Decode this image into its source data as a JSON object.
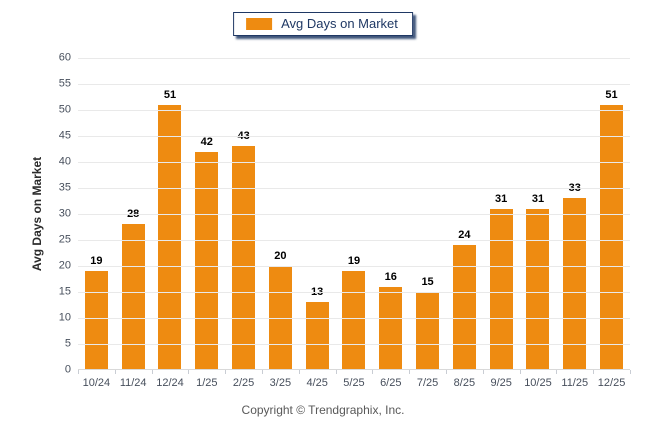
{
  "legend": {
    "label": "Avg Days on Market"
  },
  "footer": {
    "copyright": "Copyright © Trendgraphix, Inc."
  },
  "colors": {
    "bar": "#EE8B11",
    "legend_border": "#1F3864",
    "legend_text": "#1F3864",
    "gridline": "#E9E9E9",
    "tick_label": "#474F5C",
    "value_label": "#000000",
    "copyright_text": "#595959",
    "axis_title": "#2B2B2B"
  },
  "chart_data": {
    "type": "bar",
    "title": "",
    "xlabel": "",
    "ylabel": "Avg Days on Market",
    "categories": [
      "10/24",
      "11/24",
      "12/24",
      "1/25",
      "2/25",
      "3/25",
      "4/25",
      "5/25",
      "6/25",
      "7/25",
      "8/25",
      "9/25",
      "10/25",
      "11/25",
      "12/25"
    ],
    "values": [
      19,
      28,
      51,
      42,
      43,
      20,
      13,
      19,
      16,
      15,
      24,
      31,
      31,
      33,
      51
    ],
    "ylim": [
      0,
      60
    ],
    "ytick_step": 5,
    "y_ticks": [
      0,
      5,
      10,
      15,
      20,
      25,
      30,
      35,
      40,
      45,
      50,
      55,
      60
    ],
    "grid": true,
    "legend_position": "top-center",
    "legend_entries": [
      "Avg Days on Market"
    ]
  }
}
